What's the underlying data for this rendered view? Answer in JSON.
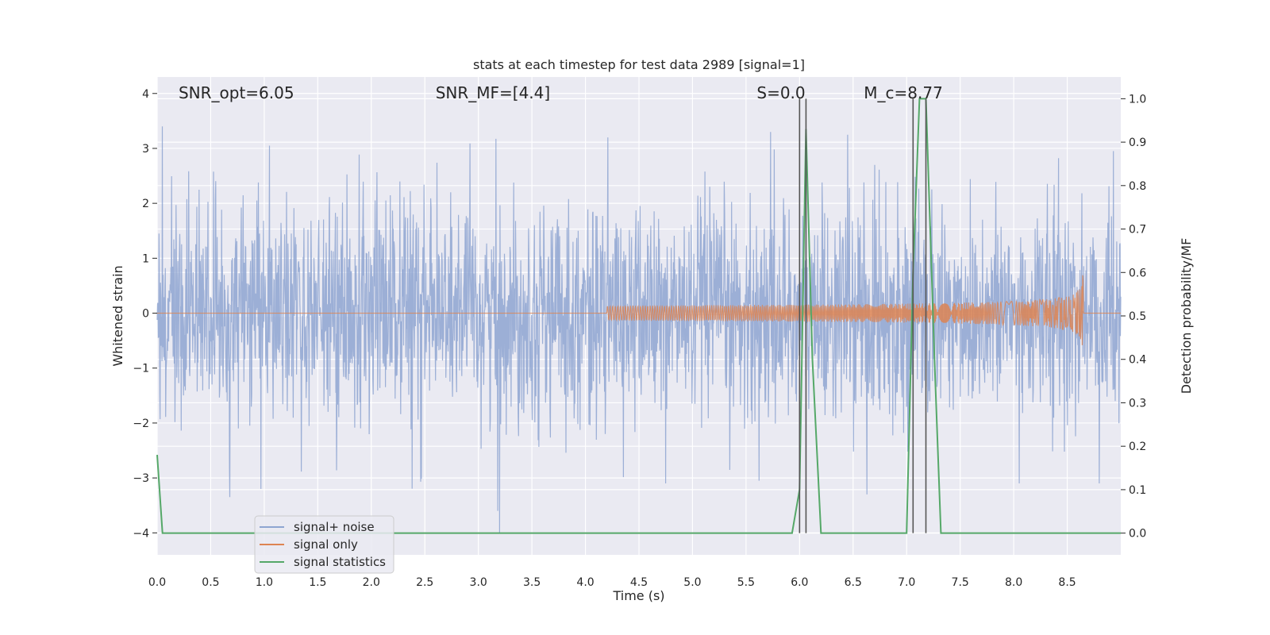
{
  "chart_data": {
    "type": "line",
    "title": "stats at each timestep for test data 2989 [signal=1]",
    "xlabel": "Time (s)",
    "ylabel_left": "Whitened strain",
    "ylabel_right": "Detection probability/MF",
    "xlim": [
      0.0,
      9.0
    ],
    "ylim_left": [
      -4.4,
      4.3
    ],
    "ylim_right": [
      -0.05,
      1.05
    ],
    "x_ticks": [
      "0.0",
      "0.5",
      "1.0",
      "1.5",
      "2.0",
      "2.5",
      "3.0",
      "3.5",
      "4.0",
      "4.5",
      "5.0",
      "5.5",
      "6.0",
      "6.5",
      "7.0",
      "7.5",
      "8.0",
      "8.5"
    ],
    "y_ticks_left": [
      "−4",
      "−3",
      "−2",
      "−1",
      "0",
      "1",
      "2",
      "3",
      "4"
    ],
    "y_ticks_right": [
      "0.0",
      "0.1",
      "0.2",
      "0.3",
      "0.4",
      "0.5",
      "0.6",
      "0.7",
      "0.8",
      "0.9",
      "1.0"
    ],
    "grid": true,
    "legend_position": "lower-left",
    "annotations": [
      {
        "text": "SNR_opt=6.05",
        "x": 0.2
      },
      {
        "text": "SNR_MF=[4.4]",
        "x": 2.6
      },
      {
        "text": "S=0.0",
        "x": 5.6
      },
      {
        "text": "M_c=8.77",
        "x": 6.6
      }
    ],
    "series": [
      {
        "name": "signal+ noise",
        "axis": "left",
        "color": "#8ea5d1",
        "kind": "noise",
        "std": 0.95,
        "extremes": [
          {
            "x": 0.05,
            "y": 3.4
          },
          {
            "x": 0.68,
            "y": -3.35
          },
          {
            "x": 1.05,
            "y": 3.05
          },
          {
            "x": 3.2,
            "y": -4.0
          },
          {
            "x": 3.18,
            "y": -3.6
          },
          {
            "x": 4.75,
            "y": -3.1
          },
          {
            "x": 5.73,
            "y": 3.3
          },
          {
            "x": 5.62,
            "y": -3.05
          },
          {
            "x": 6.45,
            "y": 3.25
          },
          {
            "x": 6.63,
            "y": -3.3
          },
          {
            "x": 8.05,
            "y": -3.1
          },
          {
            "x": 8.8,
            "y": -3.1
          },
          {
            "x": 8.93,
            "y": 2.95
          }
        ]
      },
      {
        "name": "signal only",
        "axis": "left",
        "color": "#dd8452",
        "kind": "chirp",
        "start": 4.2,
        "end": 8.65,
        "peak_amplitude": 0.8
      },
      {
        "name": "signal statistics",
        "axis": "right",
        "color": "#55a868",
        "kind": "line",
        "points": [
          [
            0.0,
            0.18
          ],
          [
            0.05,
            0.0
          ],
          [
            0.12,
            0.0
          ],
          [
            5.93,
            0.0
          ],
          [
            6.0,
            0.1
          ],
          [
            6.06,
            0.93
          ],
          [
            6.12,
            0.4
          ],
          [
            6.2,
            0.0
          ],
          [
            6.28,
            0.0
          ],
          [
            7.0,
            0.0
          ],
          [
            7.06,
            0.6
          ],
          [
            7.12,
            1.0
          ],
          [
            7.18,
            1.0
          ],
          [
            7.26,
            0.4
          ],
          [
            7.32,
            0.0
          ],
          [
            9.0,
            0.0
          ]
        ]
      }
    ],
    "vertical_markers": [
      6.0,
      6.06,
      7.06,
      7.18
    ],
    "marker_color": "#555555"
  }
}
